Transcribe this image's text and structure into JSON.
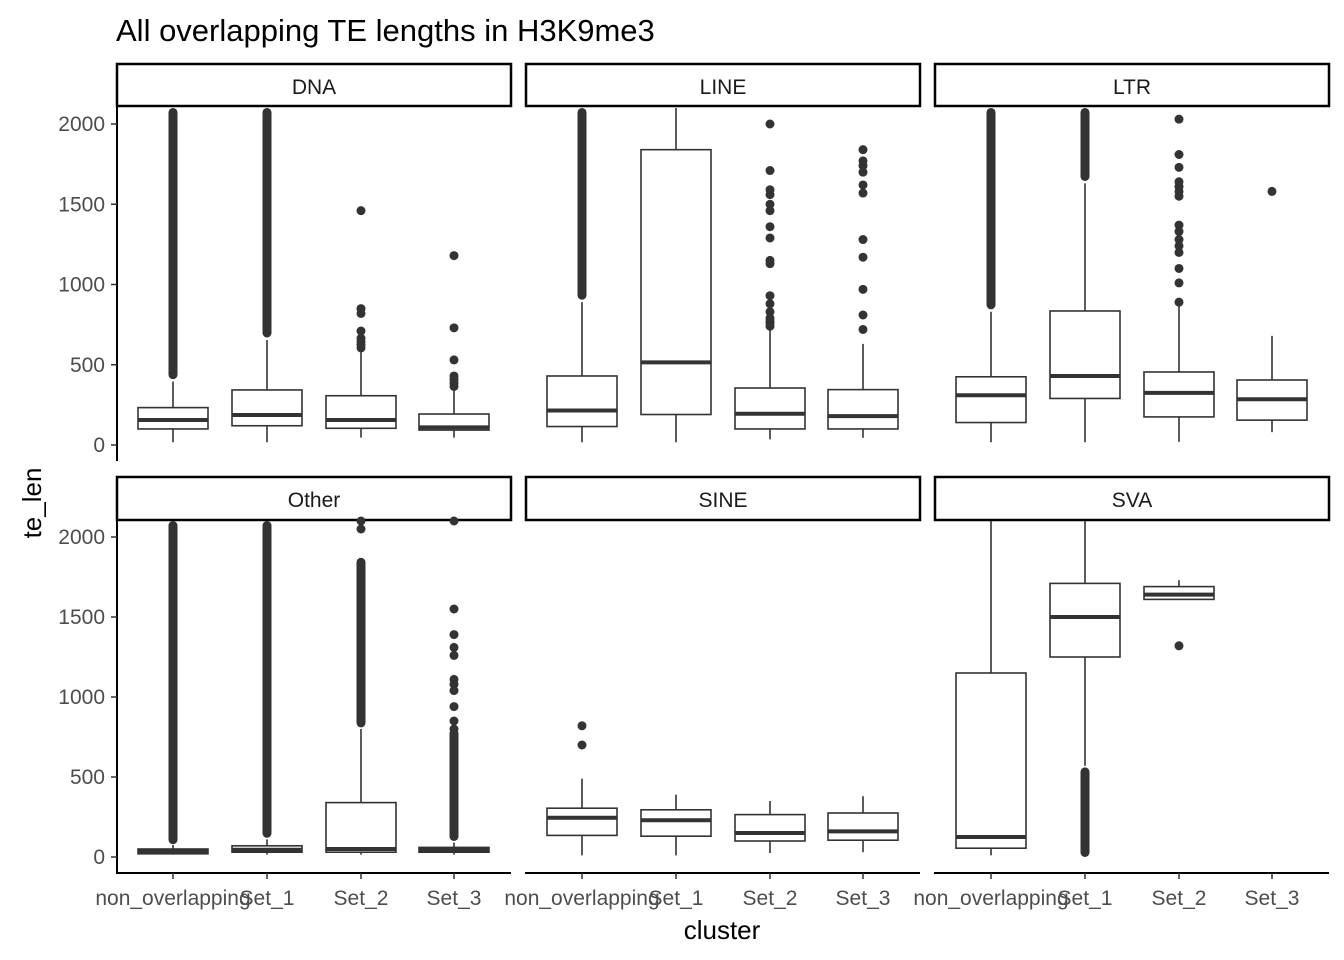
{
  "chart_data": {
    "type": "boxplot",
    "title": "All overlapping TE lengths in H3K9me3",
    "xlabel": "cluster",
    "ylabel": "te_len",
    "ylim": [
      0,
      2100
    ],
    "yticks": [
      0,
      500,
      1000,
      1500,
      2000
    ],
    "ytick_labels": [
      "0",
      "500",
      "1000",
      "1500",
      "2000"
    ],
    "categories": [
      "non_overlapping",
      "Set_1",
      "Set_2",
      "Set_3"
    ],
    "grid": false,
    "legend": "none",
    "facets": [
      {
        "name": "DNA",
        "boxes": [
          {
            "cluster": "non_overlapping",
            "lower": 17,
            "q1": 100,
            "median": 156,
            "q3": 233,
            "upper": 395,
            "outlier_band": [
              410,
              2100
            ],
            "outliers": []
          },
          {
            "cluster": "Set_1",
            "lower": 17,
            "q1": 120,
            "median": 187,
            "q3": 343,
            "upper": 654,
            "outlier_band": [
              670,
              2100
            ],
            "outliers": []
          },
          {
            "cluster": "Set_2",
            "lower": 46,
            "q1": 104,
            "median": 156,
            "q3": 307,
            "upper": 590,
            "outlier_band": null,
            "outliers": [
              1460,
              850,
              820,
              710,
              665,
              645,
              625,
              605
            ]
          },
          {
            "cluster": "Set_3",
            "lower": 46,
            "q1": 93,
            "median": 110,
            "q3": 193,
            "upper": 343,
            "outlier_band": null,
            "outliers": [
              1180,
              730,
              530,
              430,
              410,
              385,
              365
            ]
          }
        ]
      },
      {
        "name": "LINE",
        "boxes": [
          {
            "cluster": "non_overlapping",
            "lower": 17,
            "q1": 115,
            "median": 215,
            "q3": 430,
            "upper": 890,
            "outlier_band": [
              905,
              2100
            ],
            "outliers": []
          },
          {
            "cluster": "Set_1",
            "lower": 17,
            "q1": 190,
            "median": 515,
            "q3": 1840,
            "upper": 2100,
            "outlier_band": null,
            "outliers": []
          },
          {
            "cluster": "Set_2",
            "lower": 35,
            "q1": 100,
            "median": 195,
            "q3": 355,
            "upper": 730,
            "outlier_band": null,
            "outliers": [
              2000,
              1710,
              1590,
              1560,
              1500,
              1460,
              1360,
              1290,
              1150,
              1130,
              930,
              880,
              830,
              790,
              770,
              760,
              740
            ]
          },
          {
            "cluster": "Set_3",
            "lower": 45,
            "q1": 100,
            "median": 180,
            "q3": 345,
            "upper": 630,
            "outlier_band": null,
            "outliers": [
              1840,
              1770,
              1740,
              1700,
              1620,
              1570,
              1280,
              1170,
              970,
              810,
              720
            ]
          }
        ]
      },
      {
        "name": "LTR",
        "boxes": [
          {
            "cluster": "non_overlapping",
            "lower": 17,
            "q1": 140,
            "median": 310,
            "q3": 425,
            "upper": 830,
            "outlier_band": [
              845,
              2100
            ],
            "outliers": []
          },
          {
            "cluster": "Set_1",
            "lower": 17,
            "q1": 290,
            "median": 430,
            "q3": 835,
            "upper": 1630,
            "outlier_band": [
              1645,
              2100
            ],
            "outliers": []
          },
          {
            "cluster": "Set_2",
            "lower": 20,
            "q1": 175,
            "median": 325,
            "q3": 455,
            "upper": 880,
            "outlier_band": null,
            "outliers": [
              2030,
              1810,
              1730,
              1640,
              1610,
              1580,
              1550,
              1370,
              1330,
              1280,
              1240,
              1200,
              1100,
              1010,
              890
            ]
          },
          {
            "cluster": "Set_3",
            "lower": 80,
            "q1": 155,
            "median": 285,
            "q3": 405,
            "upper": 680,
            "outlier_band": null,
            "outliers": [
              1580
            ]
          }
        ]
      },
      {
        "name": "Other",
        "boxes": [
          {
            "cluster": "non_overlapping",
            "lower": 15,
            "q1": 20,
            "median": 35,
            "q3": 50,
            "upper": 75,
            "outlier_band": [
              80,
              2100
            ],
            "outliers": []
          },
          {
            "cluster": "Set_1",
            "lower": 15,
            "q1": 30,
            "median": 45,
            "q3": 70,
            "upper": 110,
            "outlier_band": [
              120,
              2100
            ],
            "outliers": []
          },
          {
            "cluster": "Set_2",
            "lower": 15,
            "q1": 30,
            "median": 50,
            "q3": 340,
            "upper": 800,
            "outlier_band": [
              810,
              1870
            ],
            "outliers": [
              2100,
              2050
            ]
          },
          {
            "cluster": "Set_3",
            "lower": 15,
            "q1": 30,
            "median": 45,
            "q3": 60,
            "upper": 90,
            "outlier_band": [
              100,
              800
            ],
            "outliers": [
              2100,
              1550,
              1390,
              1310,
              1260,
              1110,
              1080,
              1040,
              940,
              850,
              800
            ]
          }
        ]
      },
      {
        "name": "SINE",
        "boxes": [
          {
            "cluster": "non_overlapping",
            "lower": 10,
            "q1": 135,
            "median": 245,
            "q3": 305,
            "upper": 490,
            "outlier_band": null,
            "outliers": [
              820,
              700
            ]
          },
          {
            "cluster": "Set_1",
            "lower": 10,
            "q1": 130,
            "median": 230,
            "q3": 295,
            "upper": 390,
            "outlier_band": null,
            "outliers": []
          },
          {
            "cluster": "Set_2",
            "lower": 25,
            "q1": 100,
            "median": 150,
            "q3": 265,
            "upper": 350,
            "outlier_band": null,
            "outliers": []
          },
          {
            "cluster": "Set_3",
            "lower": 30,
            "q1": 105,
            "median": 160,
            "q3": 275,
            "upper": 380,
            "outlier_band": null,
            "outliers": []
          }
        ]
      },
      {
        "name": "SVA",
        "boxes": [
          {
            "cluster": "non_overlapping",
            "lower": 10,
            "q1": 55,
            "median": 125,
            "q3": 1150,
            "upper": 2100,
            "outlier_band": null,
            "outliers": []
          },
          {
            "cluster": "Set_1",
            "lower": 570,
            "q1": 1250,
            "median": 1500,
            "q3": 1710,
            "upper": 2100,
            "outlier_band": [
              0,
              560
            ],
            "outliers": []
          },
          {
            "cluster": "Set_2",
            "lower": 1610,
            "q1": 1610,
            "median": 1640,
            "q3": 1690,
            "upper": 1730,
            "outlier_band": null,
            "outliers": [
              1320
            ]
          },
          {
            "cluster": "Set_3",
            "lower": null,
            "q1": null,
            "median": null,
            "q3": null,
            "upper": null,
            "outlier_band": null,
            "outliers": []
          }
        ]
      }
    ]
  },
  "colors": {
    "box_line": "#333333",
    "axis": "#000000",
    "tick_text": "#4d4d4d",
    "strip_bg": "#ffffff"
  }
}
